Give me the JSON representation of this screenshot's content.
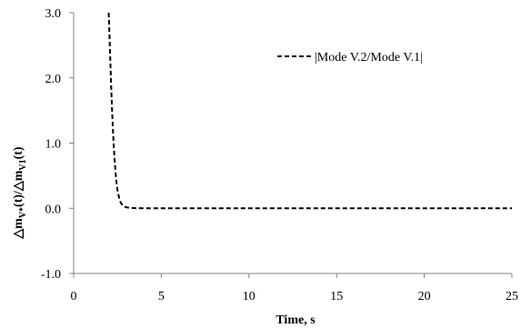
{
  "chart_data": {
    "type": "line",
    "xlabel": "Time, s",
    "ylabel_parts": {
      "a": "△m",
      "a_sub": "V*",
      "b": "(t)/△m",
      "b_sub": "V1",
      "c": "(t)"
    },
    "xlim": [
      0,
      25
    ],
    "ylim": [
      -1.0,
      3.0
    ],
    "xticks": [
      "0",
      "5",
      "10",
      "15",
      "20",
      "25"
    ],
    "yticks": [
      "-1.0",
      "0.0",
      "1.0",
      "2.0",
      "3.0"
    ],
    "grid": false,
    "legend": {
      "placement": "top-right",
      "style": "dashed"
    },
    "series": [
      {
        "name": "|Mode V.2/Mode V.1|",
        "color": "#000000",
        "dash": "dashed",
        "x": [
          2.0,
          2.05,
          2.1,
          2.15,
          2.2,
          2.25,
          2.3,
          2.35,
          2.4,
          2.45,
          2.5,
          2.6,
          2.7,
          2.8,
          2.9,
          3.0,
          3.2,
          3.4,
          3.6,
          3.8,
          4.0,
          5.0,
          7.5,
          10.0,
          12.5,
          15.0,
          17.5,
          20.0,
          22.5,
          25.0
        ],
        "y": [
          3.0,
          2.6,
          2.2,
          1.8,
          1.45,
          1.15,
          0.9,
          0.7,
          0.52,
          0.38,
          0.28,
          0.15,
          0.08,
          0.045,
          0.025,
          0.015,
          0.007,
          0.004,
          0.002,
          0.001,
          0.0,
          0.0,
          0.0,
          0.0,
          0.0,
          0.0,
          0.0,
          0.0,
          0.0,
          0.0
        ]
      }
    ]
  }
}
